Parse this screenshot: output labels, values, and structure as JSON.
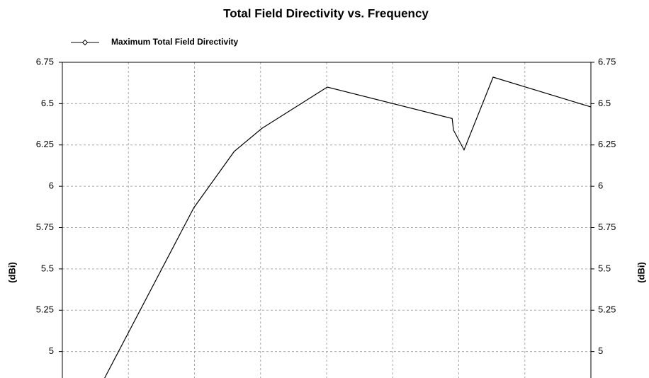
{
  "chart_data": {
    "type": "line",
    "title": "Total Field Directivity vs. Frequency",
    "ylabel": "(dBi)",
    "y2label": "(dBi)",
    "series": [
      {
        "name": "Maximum Total Field Directivity",
        "color": "#000000",
        "x": [
          0.64,
          1.99,
          2.6,
          3.02,
          4.01,
          5.9,
          5.92,
          6.08,
          6.52,
          8
        ],
        "values": [
          4.84,
          5.87,
          6.21,
          6.35,
          6.6,
          6.41,
          6.34,
          6.22,
          6.66,
          6.48
        ]
      }
    ],
    "xlim": [
      0,
      8
    ],
    "xticks": [
      0,
      1,
      2,
      3,
      4,
      5,
      6,
      7,
      8
    ],
    "ylim": [
      4.84,
      6.75
    ],
    "yticks": [
      5,
      5.25,
      5.5,
      5.75,
      6,
      6.25,
      6.5,
      6.75
    ],
    "y2lim": [
      4.84,
      6.75
    ],
    "y2ticks": [
      5,
      5.25,
      5.5,
      5.75,
      6,
      6.25,
      6.5,
      6.75
    ],
    "grid": true
  }
}
